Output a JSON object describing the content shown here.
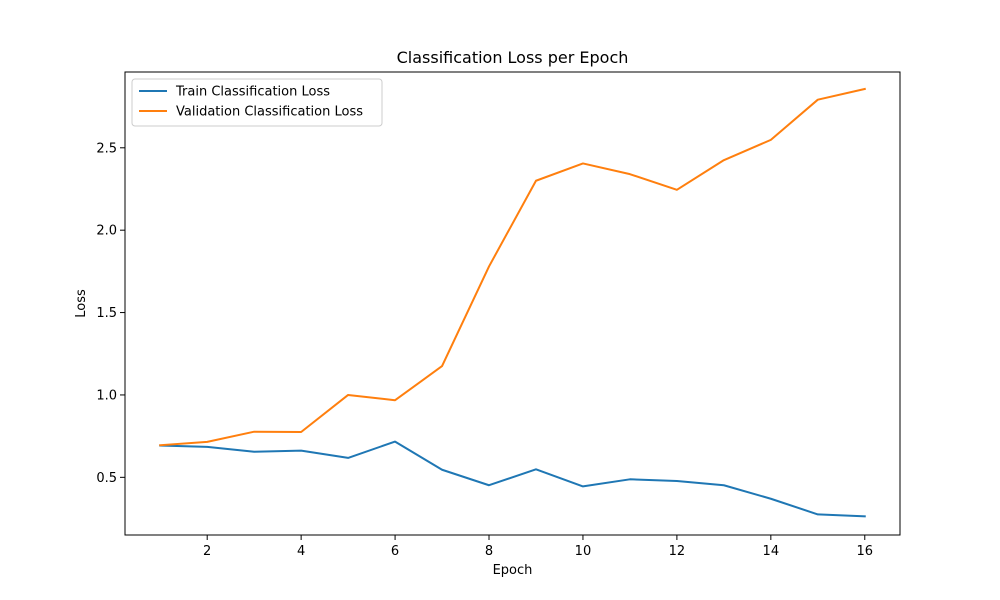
{
  "chart_data": {
    "type": "line",
    "title": "Classification Loss per Epoch",
    "xlabel": "Epoch",
    "ylabel": "Loss",
    "x": [
      1,
      2,
      3,
      4,
      5,
      6,
      7,
      8,
      9,
      10,
      11,
      12,
      13,
      14,
      15,
      16
    ],
    "xlim": [
      0.25,
      16.75
    ],
    "ylim": [
      0.15,
      2.96
    ],
    "xticks": [
      2,
      4,
      6,
      8,
      10,
      12,
      14,
      16
    ],
    "xtick_labels": [
      "2",
      "4",
      "6",
      "8",
      "10",
      "12",
      "14",
      "16"
    ],
    "yticks": [
      0.5,
      1.0,
      1.5,
      2.0,
      2.5
    ],
    "ytick_labels": [
      "0.5",
      "1.0",
      "1.5",
      "2.0",
      "2.5"
    ],
    "grid": false,
    "legend_position": "top-left",
    "series": [
      {
        "name": "Train Classification Loss",
        "color": "#1f77b4",
        "values": [
          0.693,
          0.685,
          0.655,
          0.662,
          0.618,
          0.717,
          0.546,
          0.452,
          0.549,
          0.445,
          0.488,
          0.478,
          0.452,
          0.37,
          0.275,
          0.263
        ]
      },
      {
        "name": "Validation Classification Loss",
        "color": "#ff7f0e",
        "values": [
          0.695,
          0.715,
          0.777,
          0.775,
          1.0,
          0.968,
          1.175,
          1.78,
          2.3,
          2.405,
          2.34,
          2.245,
          2.425,
          2.548,
          2.792,
          2.857
        ]
      }
    ]
  }
}
